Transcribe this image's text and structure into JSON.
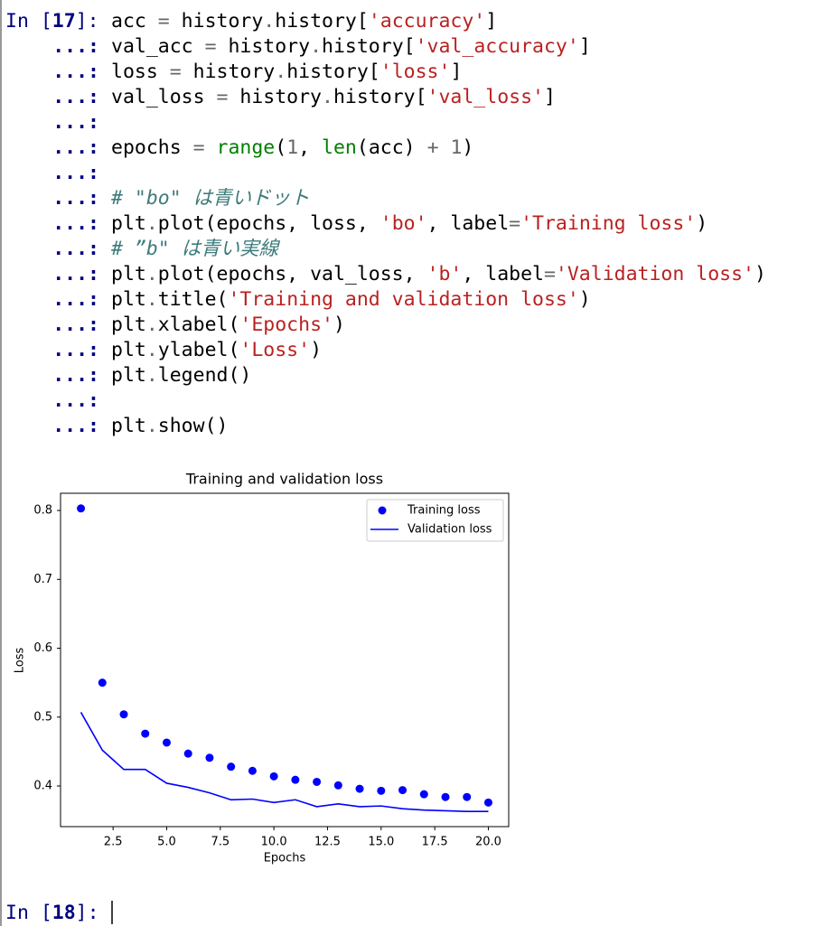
{
  "prompt_in": [
    {
      "text": "In [",
      "color": "#000080"
    },
    {
      "text": "17",
      "color": "#000080",
      "bold": true
    },
    {
      "text": "]:",
      "color": "#000080"
    }
  ],
  "continuation": "...:",
  "code": [
    [
      {
        "text": "acc "
      },
      {
        "text": "=",
        "color": "#666666"
      },
      {
        "text": " history"
      },
      {
        "text": ".",
        "color": "#666666"
      },
      {
        "text": "history["
      },
      {
        "text": "'accuracy'",
        "color": "#ba2121"
      },
      {
        "text": "]"
      }
    ],
    [
      {
        "text": "val_acc "
      },
      {
        "text": "=",
        "color": "#666666"
      },
      {
        "text": " history"
      },
      {
        "text": ".",
        "color": "#666666"
      },
      {
        "text": "history["
      },
      {
        "text": "'val_accuracy'",
        "color": "#ba2121"
      },
      {
        "text": "]"
      }
    ],
    [
      {
        "text": "loss "
      },
      {
        "text": "=",
        "color": "#666666"
      },
      {
        "text": " history"
      },
      {
        "text": ".",
        "color": "#666666"
      },
      {
        "text": "history["
      },
      {
        "text": "'loss'",
        "color": "#ba2121"
      },
      {
        "text": "]"
      }
    ],
    [
      {
        "text": "val_loss "
      },
      {
        "text": "=",
        "color": "#666666"
      },
      {
        "text": " history"
      },
      {
        "text": ".",
        "color": "#666666"
      },
      {
        "text": "history["
      },
      {
        "text": "'val_loss'",
        "color": "#ba2121"
      },
      {
        "text": "]"
      }
    ],
    [],
    [
      {
        "text": "epochs "
      },
      {
        "text": "=",
        "color": "#666666"
      },
      {
        "text": " "
      },
      {
        "text": "range",
        "color": "#008000"
      },
      {
        "text": "("
      },
      {
        "text": "1",
        "color": "#666666"
      },
      {
        "text": ", "
      },
      {
        "text": "len",
        "color": "#008000"
      },
      {
        "text": "(acc) "
      },
      {
        "text": "+",
        "color": "#666666"
      },
      {
        "text": " "
      },
      {
        "text": "1",
        "color": "#666666"
      },
      {
        "text": ")"
      }
    ],
    [],
    [
      {
        "text": "# \"bo\" は青いドット",
        "color": "#3d7b7b",
        "italic": true
      }
    ],
    [
      {
        "text": "plt"
      },
      {
        "text": ".",
        "color": "#666666"
      },
      {
        "text": "plot(epochs, loss, "
      },
      {
        "text": "'bo'",
        "color": "#ba2121"
      },
      {
        "text": ", label"
      },
      {
        "text": "=",
        "color": "#666666"
      },
      {
        "text": "'Training loss'",
        "color": "#ba2121"
      },
      {
        "text": ")"
      }
    ],
    [
      {
        "text": "# ”b\" は青い実線",
        "color": "#3d7b7b",
        "italic": true
      }
    ],
    [
      {
        "text": "plt"
      },
      {
        "text": ".",
        "color": "#666666"
      },
      {
        "text": "plot(epochs, val_loss, "
      },
      {
        "text": "'b'",
        "color": "#ba2121"
      },
      {
        "text": ", label"
      },
      {
        "text": "=",
        "color": "#666666"
      },
      {
        "text": "'Validation loss'",
        "color": "#ba2121"
      },
      {
        "text": ")"
      }
    ],
    [
      {
        "text": "plt"
      },
      {
        "text": ".",
        "color": "#666666"
      },
      {
        "text": "title("
      },
      {
        "text": "'Training and validation loss'",
        "color": "#ba2121"
      },
      {
        "text": ")"
      }
    ],
    [
      {
        "text": "plt"
      },
      {
        "text": ".",
        "color": "#666666"
      },
      {
        "text": "xlabel("
      },
      {
        "text": "'Epochs'",
        "color": "#ba2121"
      },
      {
        "text": ")"
      }
    ],
    [
      {
        "text": "plt"
      },
      {
        "text": ".",
        "color": "#666666"
      },
      {
        "text": "ylabel("
      },
      {
        "text": "'Loss'",
        "color": "#ba2121"
      },
      {
        "text": ")"
      }
    ],
    [
      {
        "text": "plt"
      },
      {
        "text": ".",
        "color": "#666666"
      },
      {
        "text": "legend()"
      }
    ],
    [],
    [
      {
        "text": "plt"
      },
      {
        "text": ".",
        "color": "#666666"
      },
      {
        "text": "show()"
      }
    ]
  ],
  "chart_data": {
    "type": "line",
    "title": "Training and validation loss",
    "x_label": "Epochs",
    "y_label": "Loss",
    "x": [
      1,
      2,
      3,
      4,
      5,
      6,
      7,
      8,
      9,
      10,
      11,
      12,
      13,
      14,
      15,
      16,
      17,
      18,
      19,
      20
    ],
    "series": [
      {
        "name": "Training loss",
        "color": "#0000ff",
        "mode": "markers",
        "values": [
          0.803,
          0.55,
          0.504,
          0.476,
          0.463,
          0.447,
          0.441,
          0.428,
          0.422,
          0.414,
          0.409,
          0.406,
          0.401,
          0.396,
          0.393,
          0.394,
          0.388,
          0.384,
          0.384,
          0.376
        ]
      },
      {
        "name": "Validation loss",
        "color": "#0000ff",
        "mode": "line",
        "values": [
          0.507,
          0.452,
          0.424,
          0.424,
          0.404,
          0.398,
          0.39,
          0.38,
          0.381,
          0.376,
          0.38,
          0.37,
          0.374,
          0.37,
          0.371,
          0.367,
          0.365,
          0.364,
          0.363,
          0.363
        ]
      }
    ],
    "xlim": [
      0.05,
      20.95
    ],
    "ylim": [
      0.341,
      0.825
    ],
    "xticks": [
      2.5,
      {
        "value": 5,
        "label": "5.0"
      },
      7.5,
      {
        "value": 10,
        "label": "10.0"
      },
      12.5,
      {
        "value": 15,
        "label": "15.0"
      },
      17.5,
      {
        "value": 20,
        "label": "20.0"
      }
    ],
    "yticks": [
      0.4,
      0.5,
      0.6,
      0.7,
      0.8
    ],
    "legend": "upper right"
  },
  "next_prompt": [
    {
      "text": "In [",
      "color": "#000080"
    },
    {
      "text": "18",
      "color": "#000080",
      "bold": true
    },
    {
      "text": "]:",
      "color": "#000080"
    }
  ]
}
